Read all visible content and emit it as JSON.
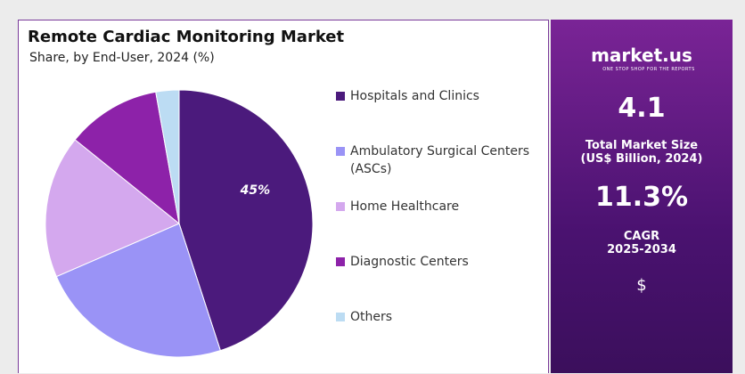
{
  "chart_data": {
    "type": "pie",
    "title": "Remote Cardiac Monitoring Market",
    "subtitle": "Share, by End-User, 2024 (%)",
    "categories": [
      "Hospitals and Clinics",
      "Ambulatory Surgical Centers (ASCs)",
      "Home Healthcare",
      "Diagnostic Centers",
      "Others"
    ],
    "values": [
      45,
      23.5,
      17.3,
      11.4,
      2.8
    ],
    "value_labels": [
      "45%",
      null,
      null,
      null,
      null
    ],
    "colors": [
      "#4b1a7c",
      "#9a93f6",
      "#d4a8ee",
      "#8d22a9",
      "#bcdcf3"
    ]
  },
  "panel": {
    "brand": "market.us",
    "tagline": "ONE STOP SHOP FOR THE REPORTS",
    "market_size": "4.1",
    "market_size_label": "Total Market Size (US$ Billion, 2024)",
    "cagr": "11.3%",
    "cagr_label": "CAGR 2025-2034",
    "icon": "$"
  }
}
